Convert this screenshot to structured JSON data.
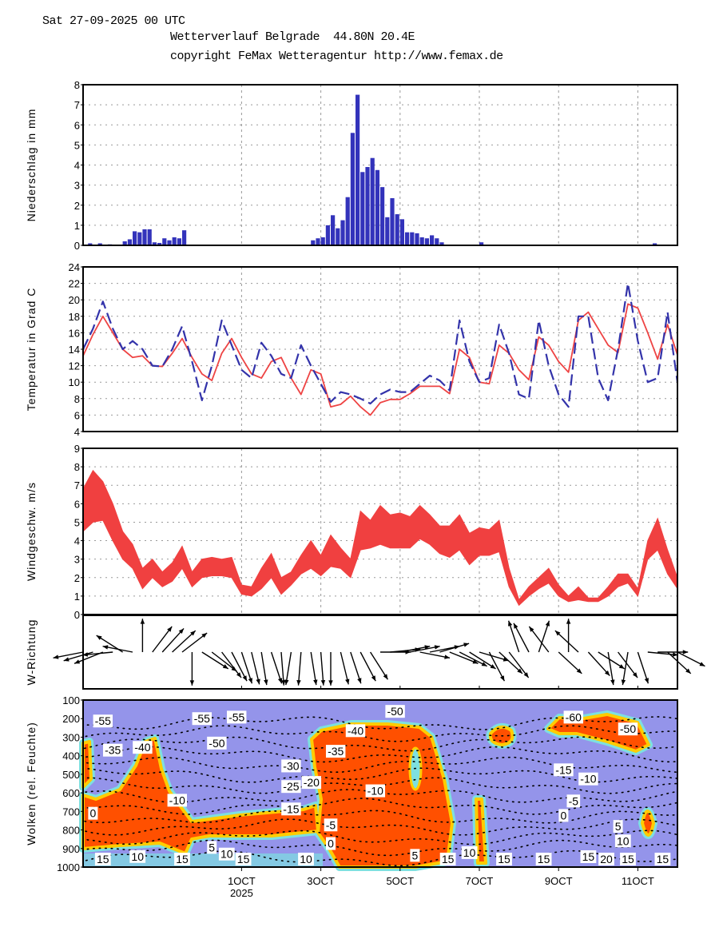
{
  "header": {
    "run": "Sat 27-09-2025 00 UTC",
    "title": "Wetterverlauf Belgrade  44.80N 20.4E",
    "copyright": "copyright FeMax Wetteragentur http://www.femax.de"
  },
  "colors": {
    "precip": "#3333bb",
    "temp_red": "#ee4444",
    "temp_blue": "#3333aa",
    "wind": "#f04040",
    "cloud_bg": "#9494ea",
    "cloud_high": "#ff5000",
    "cloud_mid": "#ffcc00",
    "cloud_low": "#7de0e0"
  },
  "chart_data": [
    {
      "type": "bar",
      "ylabel": "Niederschlag in mm",
      "ylim": [
        0,
        8
      ],
      "yticks": [
        "0",
        "1",
        "2",
        "3",
        "4",
        "5",
        "6",
        "7",
        "8"
      ],
      "grid": true,
      "bars": [
        {
          "t": "2025-09-27T03",
          "mm": 0.1
        },
        {
          "t": "2025-09-27T09",
          "mm": 0.1
        },
        {
          "t": "2025-09-27T15",
          "mm": 0.05
        },
        {
          "t": "2025-09-28T00",
          "mm": 0.2
        },
        {
          "t": "2025-09-28T03",
          "mm": 0.3
        },
        {
          "t": "2025-09-28T06",
          "mm": 0.7
        },
        {
          "t": "2025-09-28T09",
          "mm": 0.65
        },
        {
          "t": "2025-09-28T12",
          "mm": 0.8
        },
        {
          "t": "2025-09-28T15",
          "mm": 0.8
        },
        {
          "t": "2025-09-28T18",
          "mm": 0.15
        },
        {
          "t": "2025-09-28T21",
          "mm": 0.12
        },
        {
          "t": "2025-09-29T00",
          "mm": 0.35
        },
        {
          "t": "2025-09-29T03",
          "mm": 0.25
        },
        {
          "t": "2025-09-29T06",
          "mm": 0.4
        },
        {
          "t": "2025-09-29T09",
          "mm": 0.35
        },
        {
          "t": "2025-09-29T12",
          "mm": 0.75
        },
        {
          "t": "2025-10-02T18",
          "mm": 0.25
        },
        {
          "t": "2025-10-02T21",
          "mm": 0.35
        },
        {
          "t": "2025-10-03T00",
          "mm": 0.4
        },
        {
          "t": "2025-10-03T03",
          "mm": 1.0
        },
        {
          "t": "2025-10-03T06",
          "mm": 1.5
        },
        {
          "t": "2025-10-03T09",
          "mm": 0.85
        },
        {
          "t": "2025-10-03T12",
          "mm": 1.25
        },
        {
          "t": "2025-10-03T15",
          "mm": 2.4
        },
        {
          "t": "2025-10-03T18",
          "mm": 5.6
        },
        {
          "t": "2025-10-03T21",
          "mm": 7.5
        },
        {
          "t": "2025-10-04T00",
          "mm": 3.65
        },
        {
          "t": "2025-10-04T03",
          "mm": 3.9
        },
        {
          "t": "2025-10-04T06",
          "mm": 4.35
        },
        {
          "t": "2025-10-04T09",
          "mm": 3.75
        },
        {
          "t": "2025-10-04T12",
          "mm": 2.9
        },
        {
          "t": "2025-10-04T15",
          "mm": 1.4
        },
        {
          "t": "2025-10-04T18",
          "mm": 2.35
        },
        {
          "t": "2025-10-04T21",
          "mm": 1.55
        },
        {
          "t": "2025-10-05T00",
          "mm": 1.3
        },
        {
          "t": "2025-10-05T03",
          "mm": 0.65
        },
        {
          "t": "2025-10-05T06",
          "mm": 0.65
        },
        {
          "t": "2025-10-05T09",
          "mm": 0.6
        },
        {
          "t": "2025-10-05T12",
          "mm": 0.4
        },
        {
          "t": "2025-10-05T15",
          "mm": 0.35
        },
        {
          "t": "2025-10-05T18",
          "mm": 0.5
        },
        {
          "t": "2025-10-05T21",
          "mm": 0.35
        },
        {
          "t": "2025-10-06T00",
          "mm": 0.15
        },
        {
          "t": "2025-10-07T00",
          "mm": 0.15
        },
        {
          "t": "2025-10-11T09",
          "mm": 0.1
        }
      ]
    },
    {
      "type": "line",
      "ylabel": "Temperatur in Grad C",
      "ylim": [
        4,
        24
      ],
      "yticks": [
        "4",
        "6",
        "8",
        "10",
        "12",
        "14",
        "16",
        "18",
        "20",
        "22",
        "24"
      ],
      "grid": true,
      "x": [
        "2025-09-27T00",
        "2025-09-27T06",
        "2025-09-27T12",
        "2025-09-27T18",
        "2025-09-28T00",
        "2025-09-28T06",
        "2025-09-28T12",
        "2025-09-28T18",
        "2025-09-29T00",
        "2025-09-29T06",
        "2025-09-29T12",
        "2025-09-29T18",
        "2025-09-30T00",
        "2025-09-30T06",
        "2025-09-30T12",
        "2025-09-30T18",
        "2025-10-01T00",
        "2025-10-01T06",
        "2025-10-01T12",
        "2025-10-01T18",
        "2025-10-02T00",
        "2025-10-02T06",
        "2025-10-02T12",
        "2025-10-02T18",
        "2025-10-03T00",
        "2025-10-03T06",
        "2025-10-03T12",
        "2025-10-03T18",
        "2025-10-04T00",
        "2025-10-04T06",
        "2025-10-04T12",
        "2025-10-04T18",
        "2025-10-05T00",
        "2025-10-05T06",
        "2025-10-05T12",
        "2025-10-05T18",
        "2025-10-06T00",
        "2025-10-06T06",
        "2025-10-06T12",
        "2025-10-06T18",
        "2025-10-07T00",
        "2025-10-07T06",
        "2025-10-07T12",
        "2025-10-07T18",
        "2025-10-08T00",
        "2025-10-08T06",
        "2025-10-08T12",
        "2025-10-08T18",
        "2025-10-09T00",
        "2025-10-09T06",
        "2025-10-09T12",
        "2025-10-09T18",
        "2025-10-10T00",
        "2025-10-10T06",
        "2025-10-10T12",
        "2025-10-10T18",
        "2025-10-11T00",
        "2025-10-11T06",
        "2025-10-11T12",
        "2025-10-11T18",
        "2025-10-12T00"
      ],
      "series": [
        {
          "style": "solid-red",
          "values": [
            13.2,
            15.8,
            18,
            16,
            14,
            13,
            13.2,
            12,
            11.9,
            13.5,
            15.3,
            13,
            11,
            10.2,
            13.5,
            15.3,
            13,
            11,
            10.5,
            12.5,
            13,
            10.5,
            8.5,
            11.5,
            11,
            7,
            7.3,
            8.3,
            7,
            6,
            7.5,
            7.9,
            7.9,
            8.6,
            9.5,
            9.5,
            9.5,
            8.6,
            14,
            13,
            10,
            9.8,
            14.5,
            13.5,
            11.5,
            10.3,
            15.5,
            14.5,
            12.5,
            11.2,
            17.5,
            18.5,
            16.5,
            14.5,
            13.6,
            19.5,
            19,
            16,
            12.8,
            17,
            13.3
          ]
        },
        {
          "style": "dashed-blue",
          "values": [
            14,
            16.5,
            19.8,
            16.5,
            14,
            15,
            14,
            12,
            11.9,
            14,
            16.8,
            12.5,
            7.8,
            12,
            17.5,
            14.5,
            11.5,
            10.5,
            14.8,
            13.2,
            11,
            10.5,
            14.5,
            12,
            9.8,
            7.6,
            8.8,
            8.5,
            8,
            7.4,
            8.5,
            9.1,
            8.8,
            8.8,
            9.8,
            10.8,
            10.2,
            9,
            17.5,
            12.5,
            10,
            10.5,
            17,
            13.5,
            8.5,
            8,
            17.5,
            12,
            8.5,
            7,
            18,
            18,
            10.5,
            7.8,
            14,
            22,
            15,
            10,
            10.5,
            18.5,
            10
          ]
        }
      ]
    },
    {
      "type": "area",
      "ylabel": "Windgeschw. m/s",
      "ylim": [
        0,
        9
      ],
      "yticks": [
        "0",
        "1",
        "2",
        "3",
        "4",
        "5",
        "6",
        "7",
        "8",
        "9"
      ],
      "grid": true,
      "min": [
        4.5,
        5,
        5.1,
        4,
        3,
        2.5,
        1.4,
        2,
        1.5,
        1.8,
        2.5,
        1.5,
        2,
        2.1,
        2.1,
        2,
        1.1,
        1,
        1.4,
        2,
        1.1,
        1.6,
        2.2,
        2.5,
        2.1,
        2.6,
        2.5,
        2,
        3.5,
        3.6,
        3.8,
        3.6,
        3.6,
        3.6,
        4.1,
        3.8,
        3.3,
        3.1,
        3.5,
        2.7,
        3.2,
        3.2,
        3.4,
        1.5,
        0.5,
        1,
        1.4,
        1.7,
        1,
        0.7,
        0.8,
        0.7,
        0.7,
        1,
        1.5,
        1.7,
        1,
        3,
        3.5,
        2.2,
        1.4
      ],
      "max": [
        6.8,
        7.8,
        7.2,
        6,
        4.5,
        3.8,
        2.5,
        3,
        2.3,
        2.8,
        3.7,
        2.3,
        3,
        3.1,
        3,
        3.1,
        1.6,
        1.5,
        2.5,
        3.3,
        2,
        2.3,
        3.2,
        4,
        3.2,
        4.3,
        3.6,
        3,
        5.6,
        5.1,
        5.9,
        5.4,
        5.5,
        5.3,
        5.9,
        5.4,
        4.8,
        4.8,
        5.4,
        4.4,
        4.7,
        4.6,
        5.1,
        2.5,
        0.8,
        1.5,
        2,
        2.5,
        1.6,
        1,
        1.5,
        0.9,
        0.9,
        1.5,
        2.2,
        2.2,
        1.4,
        4,
        5.2,
        3.5,
        2
      ]
    },
    {
      "type": "vector",
      "ylabel": "W-Richtung",
      "heading_deg": [
        260,
        255,
        250,
        265,
        300,
        280,
        0,
        40,
        45,
        50,
        55,
        180,
        120,
        125,
        140,
        150,
        160,
        165,
        170,
        160,
        175,
        190,
        185,
        170,
        175,
        180,
        165,
        160,
        150,
        145,
        90,
        85,
        80,
        80,
        100,
        80,
        75,
        110,
        115,
        120,
        105,
        150,
        130,
        140,
        340,
        330,
        20,
        320,
        130,
        0,
        310,
        135,
        120,
        170,
        140,
        190,
        160,
        95,
        90,
        130,
        115
      ]
    },
    {
      "type": "heatmap",
      "ylabel": "Wolken (rel. Feuchte)",
      "ylim": [
        1000,
        100
      ],
      "yticks": [
        "100",
        "200",
        "300",
        "400",
        "500",
        "600",
        "700",
        "800",
        "900",
        "1000"
      ],
      "xticks": [
        {
          "t": "2025-10-01T00",
          "label": "1OCT",
          "sub": "2025"
        },
        {
          "t": "2025-10-03T00",
          "label": "3OCT",
          "sub": ""
        },
        {
          "t": "2025-10-05T00",
          "label": "5OCT",
          "sub": ""
        },
        {
          "t": "2025-10-07T00",
          "label": "7OCT",
          "sub": ""
        },
        {
          "t": "2025-10-09T00",
          "label": "9OCT",
          "sub": ""
        },
        {
          "t": "2025-10-11T00",
          "label": "11OCT",
          "sub": ""
        }
      ],
      "contour_labels": [
        {
          "t": "2025-09-27T12",
          "p": 213,
          "text": "-55"
        },
        {
          "t": "2025-09-27T18",
          "p": 370,
          "text": "-35"
        },
        {
          "t": "2025-09-28T12",
          "p": 355,
          "text": "-40"
        },
        {
          "t": "2025-09-27T06",
          "p": 710,
          "text": "0"
        },
        {
          "t": "2025-09-29T09",
          "p": 640,
          "text": "-10"
        },
        {
          "t": "2025-09-27T12",
          "p": 965,
          "text": "15"
        },
        {
          "t": "2025-09-28T09",
          "p": 943,
          "text": "10"
        },
        {
          "t": "2025-09-29T12",
          "p": 970,
          "text": "15"
        },
        {
          "t": "2025-09-30T06",
          "p": 894,
          "text": "5"
        },
        {
          "t": "2025-09-30T15",
          "p": 930,
          "text": "10"
        },
        {
          "t": "2025-09-30T15",
          "p": 980,
          "text": "15"
        },
        {
          "t": "2025-09-30T00",
          "p": 200,
          "text": "-55"
        },
        {
          "t": "2025-09-30T21",
          "p": 192,
          "text": "-55"
        },
        {
          "t": "2025-09-30T09",
          "p": 263,
          "text": "-50"
        },
        {
          "t": "2025-10-02T06",
          "p": 455,
          "text": "-30"
        },
        {
          "t": "2025-10-02T06",
          "p": 497,
          "text": "-25"
        },
        {
          "t": "2025-10-02T06",
          "p": 544,
          "text": "-20"
        },
        {
          "t": "2025-10-02T06",
          "p": 618,
          "text": "-15"
        },
        {
          "t": "2025-10-02T15",
          "p": 965,
          "text": "10"
        },
        {
          "t": "2025-10-03T09",
          "p": 376,
          "text": "-35"
        },
        {
          "t": "2025-10-03T21",
          "p": 334,
          "text": "-40"
        },
        {
          "t": "2025-10-04T21",
          "p": 161,
          "text": "-50"
        },
        {
          "t": "2025-10-04T09",
          "p": 589,
          "text": "-10"
        },
        {
          "t": "2025-10-03T06",
          "p": 773,
          "text": "-5"
        },
        {
          "t": "2025-10-03T06",
          "p": 873,
          "text": "0"
        },
        {
          "t": "2025-10-05T09",
          "p": 937,
          "text": "5"
        },
        {
          "t": "2025-10-06T18",
          "p": 922,
          "text": "10"
        },
        {
          "t": "2025-10-06T15",
          "p": 979,
          "text": "15"
        },
        {
          "t": "2025-10-07T15",
          "p": 993,
          "text": "15"
        },
        {
          "t": "2025-10-08T15",
          "p": 965,
          "text": "15"
        },
        {
          "t": "2025-10-09T18",
          "p": 944,
          "text": "15"
        },
        {
          "t": "2025-10-09T09",
          "p": 192,
          "text": "-60"
        },
        {
          "t": "2025-10-10T18",
          "p": 256,
          "text": "-50"
        },
        {
          "t": "2025-10-09T03",
          "p": 476,
          "text": "-15"
        },
        {
          "t": "2025-10-09T18",
          "p": 525,
          "text": "-10"
        },
        {
          "t": "2025-10-09T09",
          "p": 575,
          "text": "-5"
        },
        {
          "t": "2025-10-09T03",
          "p": 653,
          "text": "0"
        },
        {
          "t": "2025-10-10T12",
          "p": 781,
          "text": "5"
        },
        {
          "t": "2025-10-10T15",
          "p": 859,
          "text": "10"
        },
        {
          "t": "2025-10-10T18",
          "p": 930,
          "text": "15"
        },
        {
          "t": "2025-10-10T15",
          "p": 986,
          "text": "20"
        },
        {
          "t": "2025-10-11T15",
          "p": 965,
          "text": "15"
        }
      ]
    }
  ]
}
